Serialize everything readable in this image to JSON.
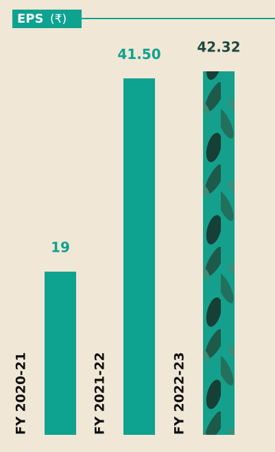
{
  "chart_data": {
    "type": "bar",
    "title": "EPS",
    "unit": "(₹)",
    "categories": [
      "FY 2020-21",
      "FY 2021-22",
      "FY 2022-23"
    ],
    "values": [
      19,
      41.5,
      42.32
    ],
    "value_labels": [
      "19",
      "41.50",
      "42.32"
    ],
    "color": "#0ea290"
  }
}
